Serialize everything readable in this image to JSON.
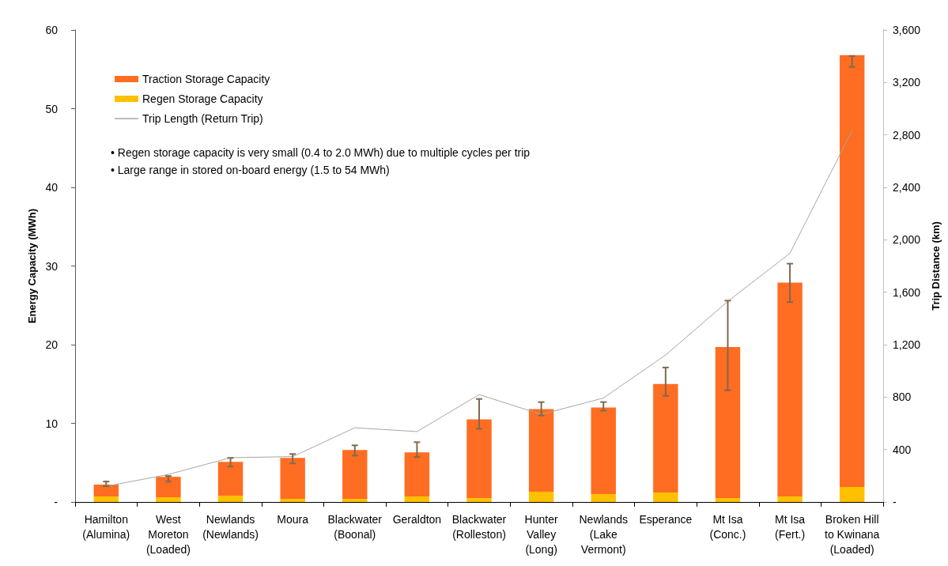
{
  "chart_data": {
    "type": "bar",
    "stacked": true,
    "ylabel": "Energy Capacity (MWh)",
    "y2label": "Trip Distance (km)",
    "categories": [
      "Hamilton\n(Alumina)",
      "West\nMoreton\n(Loaded)",
      "Newlands\n(Newlands)",
      "Moura",
      "Blackwater\n(Boonal)",
      "Geraldton",
      "Blackwater\n(Rolleston)",
      "Hunter\nValley\n(Long)",
      "Newlands\n(Lake\nVermont)",
      "Esperance",
      "Mt Isa\n(Conc.)",
      "Mt Isa\n(Fert.)",
      "Broken Hill\nto Kwinana\n(Loaded)"
    ],
    "series": [
      {
        "name": "Regen Storage Capacity",
        "color": "#ffc000",
        "values": [
          0.7,
          0.6,
          0.8,
          0.4,
          0.4,
          0.7,
          0.5,
          1.3,
          1.0,
          1.2,
          0.5,
          0.7,
          1.9
        ]
      },
      {
        "name": "Traction Storage Capacity",
        "color": "#ff6d22",
        "values": [
          1.5,
          2.6,
          4.3,
          5.2,
          6.2,
          5.6,
          10.0,
          10.5,
          11.0,
          13.8,
          19.2,
          27.2,
          54.9
        ],
        "errors": [
          [
            2.0,
            2.6
          ],
          [
            2.6,
            3.3
          ],
          [
            4.5,
            5.6
          ],
          [
            4.9,
            6.1
          ],
          [
            5.9,
            7.2
          ],
          [
            5.7,
            7.6
          ],
          [
            9.3,
            13.1
          ],
          [
            11.0,
            12.7
          ],
          [
            11.6,
            12.7
          ],
          [
            13.5,
            17.1
          ],
          [
            14.2,
            25.6
          ],
          [
            25.4,
            30.3
          ],
          [
            55.3,
            56.7
          ]
        ]
      },
      {
        "name": "Trip Length (Return Trip)",
        "type": "line",
        "axis": "y2",
        "color": "#a6a6a6",
        "marker": "none",
        "values": [
          120,
          210,
          338,
          346,
          566,
          537,
          819,
          668,
          793,
          1121,
          1530,
          1897,
          2833
        ]
      }
    ],
    "ylim": [
      0,
      60
    ],
    "yticks": [
      {
        "value": 0,
        "label": "-"
      },
      10,
      20,
      30,
      40,
      50,
      60
    ],
    "y2lim": [
      0,
      3600
    ],
    "y2ticks": [
      {
        "value": 0,
        "label": "-"
      },
      400,
      800,
      {
        "value": 1200,
        "label": "1,200"
      },
      {
        "value": 1600,
        "label": "1,600"
      },
      {
        "value": 2000,
        "label": "2,000"
      },
      {
        "value": 2400,
        "label": "2,400"
      },
      {
        "value": 2800,
        "label": "2,800"
      },
      {
        "value": 3200,
        "label": "3,200"
      },
      {
        "value": 3600,
        "label": "3,600"
      }
    ],
    "grid": false,
    "legend": "top left",
    "annotations": [
      "• Regen storage capacity is very small (0.4 to 2.0 MWh) due to multiple cycles per trip",
      "• Large range in stored on-board energy (1.5 to 54 MWh)"
    ]
  }
}
